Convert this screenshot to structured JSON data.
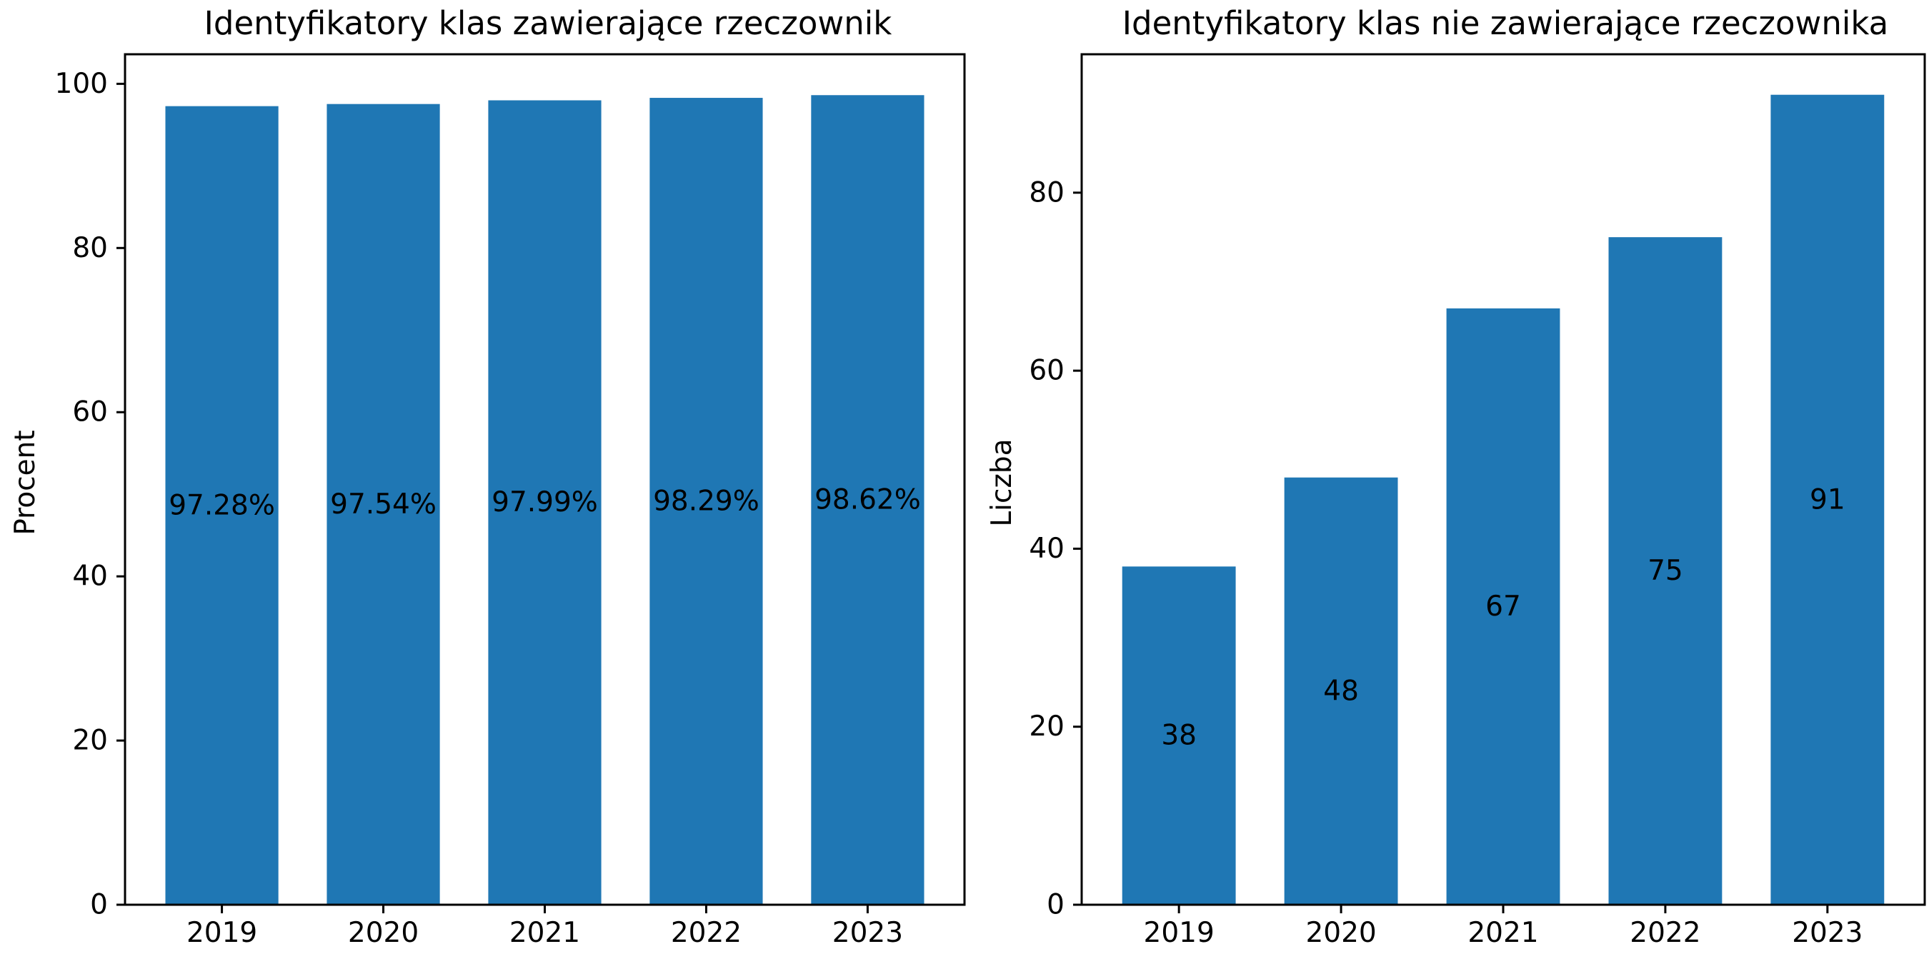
{
  "chart_data": [
    {
      "type": "bar",
      "title": "Identyfikatory klas zawierające rzeczownik",
      "xlabel": "",
      "ylabel": "Procent",
      "categories": [
        "2019",
        "2020",
        "2021",
        "2022",
        "2023"
      ],
      "values": [
        97.28,
        97.54,
        97.99,
        98.29,
        98.62
      ],
      "data_labels": [
        "97.28%",
        "97.54%",
        "97.99%",
        "98.29%",
        "98.62%"
      ],
      "ylim": [
        0,
        103.6
      ],
      "yticks": [
        0,
        20,
        40,
        60,
        80,
        100
      ],
      "color": "#1f77b4",
      "grid": false
    },
    {
      "type": "bar",
      "title": "Identyfikatory klas nie zawierające rzeczownika",
      "xlabel": "",
      "ylabel": "Liczba",
      "categories": [
        "2019",
        "2020",
        "2021",
        "2022",
        "2023"
      ],
      "values": [
        38,
        48,
        67,
        75,
        91
      ],
      "data_labels": [
        "38",
        "48",
        "67",
        "75",
        "91"
      ],
      "ylim": [
        0,
        95.55
      ],
      "yticks": [
        0,
        20,
        40,
        60,
        80
      ],
      "color": "#1f77b4",
      "grid": false
    }
  ]
}
